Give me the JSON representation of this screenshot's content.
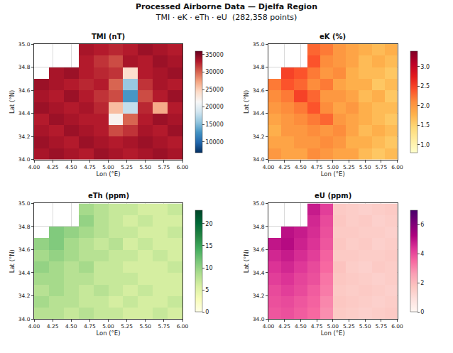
{
  "chart_data": {
    "type": "heatmap_grid",
    "title": "Processed Airborne Data — Djelfa Region",
    "subtitle": "TMI · eK · eTh · eU  (282,358 points)",
    "panels": [
      {
        "type": "heatmap",
        "title": "TMI (nT)",
        "x_label": "Lon (°E)",
        "y_label": "Lat (°N)",
        "color": "RdBu_r",
        "grid": true,
        "xlim": [
          4,
          6
        ],
        "ylim": [
          34,
          35
        ],
        "xticks": [
          {
            "value": 4,
            "label": "4.00"
          },
          {
            "value": 4.25,
            "label": "4.25"
          },
          {
            "value": 4.5,
            "label": "4.50"
          },
          {
            "value": 4.75,
            "label": "4.75"
          },
          {
            "value": 5,
            "label": "5.00"
          },
          {
            "value": 5.25,
            "label": "5.25"
          },
          {
            "value": 5.5,
            "label": "5.50"
          },
          {
            "value": 5.75,
            "label": "5.75"
          },
          {
            "value": 6,
            "label": "6.00"
          }
        ],
        "yticks": [
          {
            "value": 34,
            "label": "34.0"
          },
          {
            "value": 34.2,
            "label": "34.2"
          },
          {
            "value": 34.4,
            "label": "34.4"
          },
          {
            "value": 34.6,
            "label": "34.6"
          },
          {
            "value": 34.8,
            "label": "34.8"
          },
          {
            "value": 35,
            "label": "35.0"
          }
        ],
        "x": [
          4.1,
          4.3,
          4.5,
          4.7,
          4.9,
          5.1,
          5.3,
          5.5,
          5.7,
          5.9
        ],
        "y": [
          34.05,
          34.15,
          34.25,
          34.35,
          34.45,
          34.55,
          34.65,
          34.75,
          34.85,
          34.95
        ],
        "z": [
          [
            33500,
            34000,
            33500,
            33000,
            34000,
            33500,
            33000,
            33500,
            34000,
            33500
          ],
          [
            34000,
            33500,
            33000,
            34000,
            33500,
            33000,
            33500,
            34000,
            33500,
            33000
          ],
          [
            33500,
            33000,
            34000,
            33500,
            33000,
            31000,
            32000,
            33500,
            33000,
            34000
          ],
          [
            33000,
            34000,
            33500,
            33000,
            33000,
            22000,
            30000,
            33000,
            34000,
            33500
          ],
          [
            34000,
            33500,
            33000,
            33500,
            32500,
            26000,
            18000,
            32500,
            27000,
            33000
          ],
          [
            33500,
            33000,
            34000,
            33000,
            32000,
            31000,
            13000,
            31000,
            33000,
            34000
          ],
          [
            34000,
            33500,
            33000,
            32500,
            33000,
            30000,
            16000,
            32000,
            33500,
            33000
          ],
          [
            null,
            33500,
            34000,
            33000,
            32500,
            32000,
            24000,
            33000,
            33500,
            34000
          ],
          [
            null,
            null,
            null,
            33000,
            32000,
            31000,
            33500,
            33000,
            34000,
            33500
          ],
          [
            null,
            null,
            null,
            33500,
            33000,
            32500,
            33000,
            34000,
            33500,
            33000
          ]
        ],
        "colorbar_range": [
          7000,
          36000
        ],
        "colorbar_ticks": [
          10000,
          15000,
          20000,
          25000,
          30000,
          35000
        ]
      },
      {
        "type": "heatmap",
        "title": "eK (%)",
        "x_label": "Lon (°E)",
        "y_label": "Lat (°N)",
        "color": "YlOrRd",
        "grid": true,
        "xlim": [
          4,
          6
        ],
        "ylim": [
          34,
          35
        ],
        "xticks": [
          {
            "value": 4,
            "label": "4.00"
          },
          {
            "value": 4.25,
            "label": "4.25"
          },
          {
            "value": 4.5,
            "label": "4.50"
          },
          {
            "value": 4.75,
            "label": "4.75"
          },
          {
            "value": 5,
            "label": "5.00"
          },
          {
            "value": 5.25,
            "label": "5.25"
          },
          {
            "value": 5.5,
            "label": "5.50"
          },
          {
            "value": 5.75,
            "label": "5.75"
          },
          {
            "value": 6,
            "label": "6.00"
          }
        ],
        "yticks": [
          {
            "value": 34,
            "label": "34.0"
          },
          {
            "value": 34.2,
            "label": "34.2"
          },
          {
            "value": 34.4,
            "label": "34.4"
          },
          {
            "value": 34.6,
            "label": "34.6"
          },
          {
            "value": 34.8,
            "label": "34.8"
          },
          {
            "value": 35,
            "label": "35.0"
          }
        ],
        "x": [
          4.1,
          4.3,
          4.5,
          4.7,
          4.9,
          5.1,
          5.3,
          5.5,
          5.7,
          5.9
        ],
        "y": [
          34.05,
          34.15,
          34.25,
          34.35,
          34.45,
          34.55,
          34.65,
          34.75,
          34.85,
          34.95
        ],
        "z": [
          [
            2.0,
            1.9,
            1.9,
            2.1,
            2.0,
            1.9,
            1.9,
            1.7,
            1.6,
            1.7
          ],
          [
            1.9,
            1.9,
            2.0,
            2.0,
            2.1,
            2.0,
            1.8,
            1.8,
            1.7,
            1.6
          ],
          [
            1.8,
            2.0,
            2.0,
            2.1,
            2.0,
            2.1,
            1.9,
            1.7,
            1.8,
            1.7
          ],
          [
            1.9,
            2.0,
            2.1,
            2.2,
            2.3,
            2.0,
            1.9,
            1.8,
            1.7,
            1.6
          ],
          [
            2.0,
            2.1,
            2.2,
            2.4,
            2.1,
            1.9,
            2.0,
            1.8,
            1.7,
            1.7
          ],
          [
            2.1,
            2.2,
            2.5,
            2.3,
            2.0,
            2.0,
            1.9,
            1.7,
            1.8,
            1.6
          ],
          [
            2.2,
            2.4,
            2.3,
            2.1,
            2.2,
            1.9,
            1.8,
            1.8,
            1.6,
            1.7
          ],
          [
            null,
            2.5,
            2.4,
            2.2,
            2.0,
            2.1,
            1.8,
            1.7,
            1.7,
            1.6
          ],
          [
            null,
            null,
            null,
            2.4,
            2.1,
            2.0,
            1.9,
            1.7,
            1.8,
            1.7
          ],
          [
            null,
            null,
            null,
            2.3,
            2.2,
            2.0,
            1.9,
            1.8,
            1.7,
            1.8
          ]
        ],
        "colorbar_range": [
          0.8,
          3.4
        ],
        "colorbar_ticks": [
          {
            "value": 1,
            "label": "1.0"
          },
          {
            "value": 1.5,
            "label": "1.5"
          },
          {
            "value": 2,
            "label": "2.0"
          },
          {
            "value": 2.5,
            "label": "2.5"
          },
          {
            "value": 3,
            "label": "3.0"
          }
        ]
      },
      {
        "type": "heatmap",
        "title": "eTh (ppm)",
        "x_label": "Lon (°E)",
        "y_label": "Lat (°N)",
        "color": "YlGn",
        "grid": true,
        "xlim": [
          4,
          6
        ],
        "ylim": [
          34,
          35
        ],
        "xticks": [
          {
            "value": 4,
            "label": "4.00"
          },
          {
            "value": 4.25,
            "label": "4.25"
          },
          {
            "value": 4.5,
            "label": "4.50"
          },
          {
            "value": 4.75,
            "label": "4.75"
          },
          {
            "value": 5,
            "label": "5.00"
          },
          {
            "value": 5.25,
            "label": "5.25"
          },
          {
            "value": 5.5,
            "label": "5.50"
          },
          {
            "value": 5.75,
            "label": "5.75"
          },
          {
            "value": 6,
            "label": "6.00"
          }
        ],
        "yticks": [
          {
            "value": 34,
            "label": "34.0"
          },
          {
            "value": 34.2,
            "label": "34.2"
          },
          {
            "value": 34.4,
            "label": "34.4"
          },
          {
            "value": 34.6,
            "label": "34.6"
          },
          {
            "value": 34.8,
            "label": "34.8"
          },
          {
            "value": 35,
            "label": "35.0"
          }
        ],
        "x": [
          4.1,
          4.3,
          4.5,
          4.7,
          4.9,
          5.1,
          5.3,
          5.5,
          5.7,
          5.9
        ],
        "y": [
          34.05,
          34.15,
          34.25,
          34.35,
          34.45,
          34.55,
          34.65,
          34.75,
          34.85,
          34.95
        ],
        "z": [
          [
            8,
            8,
            7,
            8,
            7,
            7,
            6,
            6,
            7,
            6
          ],
          [
            9,
            8,
            8,
            7,
            7,
            6,
            7,
            6,
            6,
            7
          ],
          [
            8,
            9,
            8,
            7,
            8,
            7,
            6,
            7,
            6,
            6
          ],
          [
            9,
            9,
            8,
            8,
            7,
            7,
            7,
            6,
            6,
            6
          ],
          [
            10,
            9,
            8,
            9,
            7,
            7,
            6,
            6,
            6,
            7
          ],
          [
            9,
            10,
            9,
            8,
            8,
            7,
            7,
            6,
            7,
            6
          ],
          [
            10,
            11,
            9,
            8,
            7,
            8,
            6,
            7,
            6,
            6
          ],
          [
            null,
            11,
            10,
            9,
            8,
            7,
            7,
            6,
            6,
            7
          ],
          [
            null,
            null,
            null,
            10,
            8,
            7,
            6,
            7,
            6,
            6
          ],
          [
            null,
            null,
            null,
            9,
            8,
            7,
            7,
            6,
            6,
            7
          ]
        ],
        "colorbar_range": [
          0,
          23
        ],
        "colorbar_ticks": [
          0,
          5,
          10,
          15,
          20
        ]
      },
      {
        "type": "heatmap",
        "title": "eU (ppm)",
        "x_label": "Lon (°E)",
        "y_label": "Lat (°N)",
        "color": "RdPu",
        "grid": true,
        "xlim": [
          4,
          6
        ],
        "ylim": [
          34,
          35
        ],
        "xticks": [
          {
            "value": 4,
            "label": "4.00"
          },
          {
            "value": 4.25,
            "label": "4.25"
          },
          {
            "value": 4.5,
            "label": "4.50"
          },
          {
            "value": 4.75,
            "label": "4.75"
          },
          {
            "value": 5,
            "label": "5.00"
          },
          {
            "value": 5.25,
            "label": "5.25"
          },
          {
            "value": 5.5,
            "label": "5.50"
          },
          {
            "value": 5.75,
            "label": "5.75"
          },
          {
            "value": 6,
            "label": "6.00"
          }
        ],
        "yticks": [
          {
            "value": 34,
            "label": "34.0"
          },
          {
            "value": 34.2,
            "label": "34.2"
          },
          {
            "value": 34.4,
            "label": "34.4"
          },
          {
            "value": 34.6,
            "label": "34.6"
          },
          {
            "value": 34.8,
            "label": "34.8"
          },
          {
            "value": 35,
            "label": "35.0"
          }
        ],
        "x": [
          4.1,
          4.3,
          4.5,
          4.7,
          4.9,
          5.1,
          5.3,
          5.5,
          5.7,
          5.9
        ],
        "y": [
          34.05,
          34.15,
          34.25,
          34.35,
          34.45,
          34.55,
          34.65,
          34.75,
          34.85,
          34.95
        ],
        "z": [
          [
            3.8,
            3.9,
            3.7,
            3.5,
            2.9,
            1.6,
            1.5,
            1.4,
            1.5,
            1.6
          ],
          [
            3.9,
            4.0,
            3.8,
            3.6,
            3.0,
            1.7,
            1.6,
            1.5,
            1.4,
            1.5
          ],
          [
            4.0,
            4.2,
            4.0,
            3.7,
            3.2,
            1.6,
            1.5,
            1.6,
            1.5,
            1.4
          ],
          [
            4.2,
            4.4,
            4.1,
            3.9,
            3.3,
            1.7,
            1.6,
            1.5,
            1.4,
            1.5
          ],
          [
            4.4,
            4.6,
            4.3,
            4.0,
            3.5,
            1.8,
            1.5,
            1.4,
            1.6,
            1.5
          ],
          [
            4.6,
            4.8,
            4.5,
            4.2,
            3.6,
            1.6,
            1.6,
            1.5,
            1.5,
            1.6
          ],
          [
            4.9,
            5.1,
            4.7,
            4.4,
            3.8,
            1.7,
            1.5,
            1.6,
            1.4,
            1.5
          ],
          [
            null,
            5.0,
            4.8,
            4.5,
            3.9,
            1.6,
            1.6,
            1.5,
            1.5,
            1.4
          ],
          [
            null,
            null,
            null,
            4.6,
            4.0,
            1.7,
            1.5,
            1.6,
            1.4,
            1.5
          ],
          [
            null,
            null,
            null,
            4.8,
            4.2,
            1.6,
            1.5,
            1.4,
            1.5,
            1.6
          ]
        ],
        "colorbar_range": [
          0,
          7
        ],
        "colorbar_ticks": [
          0,
          2,
          4,
          6
        ]
      }
    ]
  }
}
